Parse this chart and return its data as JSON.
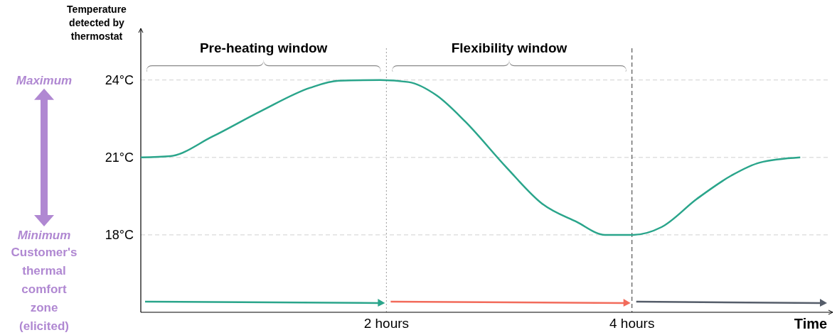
{
  "chart_data": {
    "type": "line",
    "xlabel": "Time",
    "ylabel": "Temperature detected by thermostat",
    "x": [
      0,
      0.24,
      0.58,
      0.98,
      1.38,
      1.61,
      1.95,
      2.18,
      2.41,
      2.64,
      2.98,
      3.27,
      3.55,
      3.78,
      4.01,
      4.24,
      4.53,
      4.81,
      5.04,
      5.37
    ],
    "series": [
      {
        "color": "#2aa58b",
        "values": [
          21,
          21.05,
          21.8,
          22.8,
          23.7,
          23.97,
          24,
          23.92,
          23.4,
          22.4,
          20.6,
          19.2,
          18.5,
          18,
          18,
          18.3,
          19.4,
          20.3,
          20.8,
          21
        ]
      }
    ],
    "xlim": [
      0,
      5.6
    ],
    "ylim": [
      15,
      26
    ],
    "xticks": [
      {
        "value": 2,
        "label": "2 hours"
      },
      {
        "value": 4,
        "label": "4 hours"
      }
    ],
    "yticks": [
      {
        "value": 18,
        "label": "18°C"
      },
      {
        "value": 21,
        "label": "21°C"
      },
      {
        "value": 24,
        "label": "24°C"
      }
    ],
    "grid": "y",
    "line_style": "solid",
    "marker": "none",
    "ref_lines": [
      {
        "axis": "x",
        "value": 2,
        "color": "#9a9a9a",
        "line_style": "dotted"
      },
      {
        "axis": "x",
        "value": 4,
        "color": "#333333",
        "line_style": "dashed"
      }
    ],
    "annotations": [
      "Pre-heating window",
      "Flexibility window",
      "Maximum",
      "Minimum",
      "Customer's thermal comfort zone (elicited)"
    ]
  }
}
